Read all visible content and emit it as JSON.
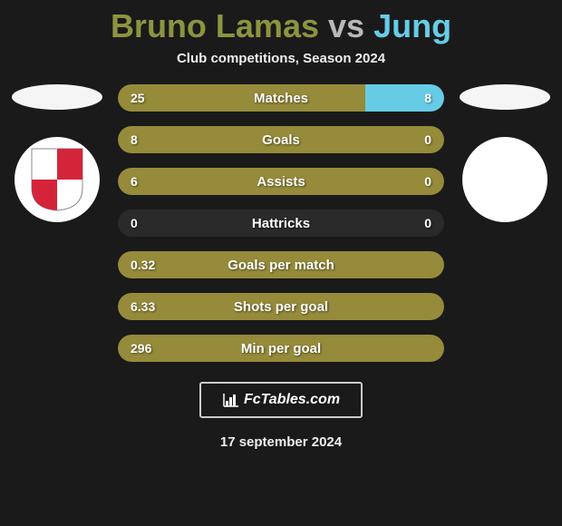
{
  "title": {
    "player1": "Bruno Lamas",
    "vs": "vs",
    "player2": "Jung"
  },
  "subtitle": "Club competitions, Season 2024",
  "colors": {
    "player1": "#8d9440",
    "player2": "#66cce6",
    "bar_left": "#958b3a",
    "bar_right": "#66cce6",
    "bg": "#1a1a1a"
  },
  "stats": [
    {
      "left_val": "25",
      "label": "Matches",
      "right_val": "8",
      "left_pct": 75.8,
      "right_pct": 24.2
    },
    {
      "left_val": "8",
      "label": "Goals",
      "right_val": "0",
      "left_pct": 100,
      "right_pct": 0
    },
    {
      "left_val": "6",
      "label": "Assists",
      "right_val": "0",
      "left_pct": 100,
      "right_pct": 0
    },
    {
      "left_val": "0",
      "label": "Hattricks",
      "right_val": "0",
      "left_pct": 0,
      "right_pct": 0
    },
    {
      "left_val": "0.32",
      "label": "Goals per match",
      "right_val": "",
      "left_pct": 100,
      "right_pct": 0
    },
    {
      "left_val": "6.33",
      "label": "Shots per goal",
      "right_val": "",
      "left_pct": 100,
      "right_pct": 0
    },
    {
      "left_val": "296",
      "label": "Min per goal",
      "right_val": "",
      "left_pct": 100,
      "right_pct": 0
    }
  ],
  "footer": {
    "site": "FcTables.com",
    "date": "17 september 2024"
  }
}
